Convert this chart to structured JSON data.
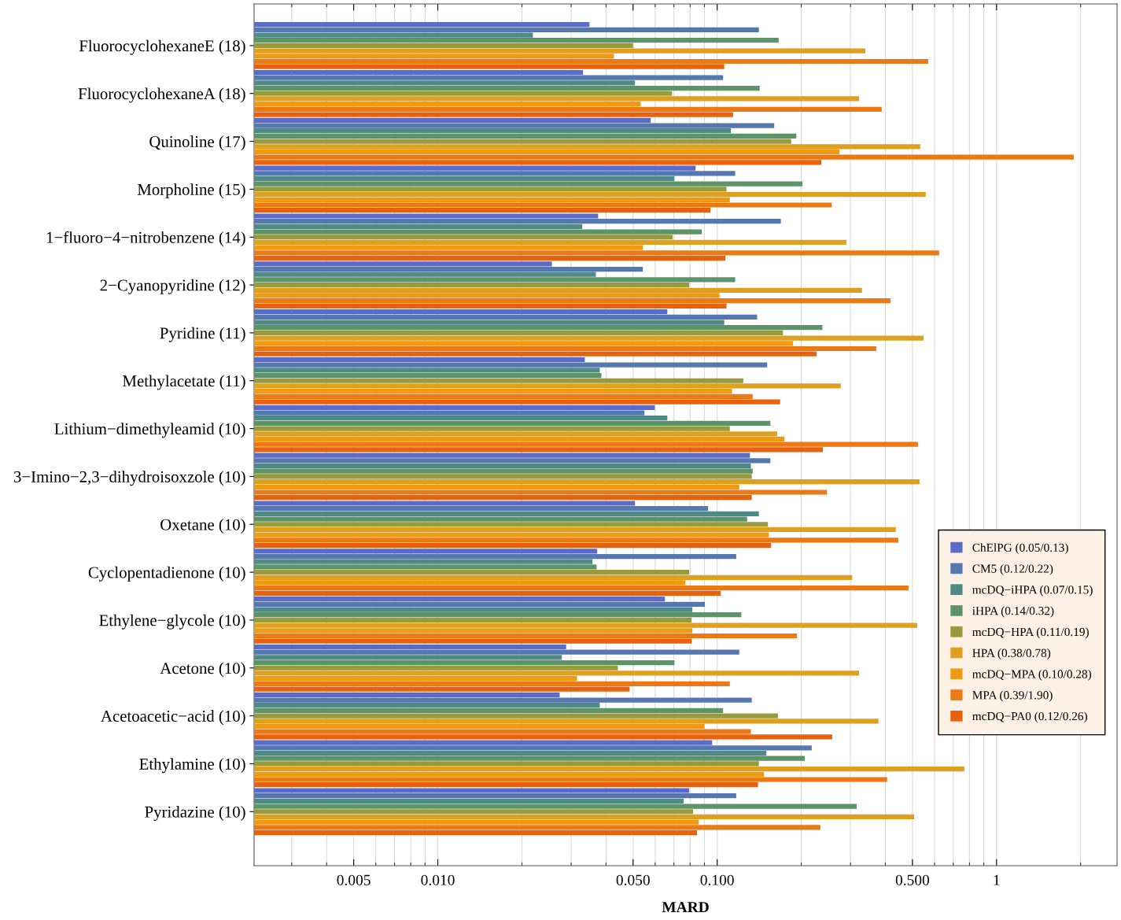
{
  "chart_data": {
    "type": "bar",
    "orientation": "horizontal",
    "xlabel": "MARD",
    "log": "x",
    "grid": "x",
    "legend": "bottom right",
    "xlim": [
      0.0022,
      2.7
    ],
    "xticks": [
      {
        "value": 0.005,
        "label": "0.005"
      },
      {
        "value": 0.01,
        "label": "0.010"
      },
      {
        "value": 0.05,
        "label": "0.050"
      },
      {
        "value": 0.1,
        "label": "0.100"
      },
      {
        "value": 0.5,
        "label": "0.500"
      },
      1
    ],
    "categories": [
      "FluorocyclohexaneE (18)",
      "FluorocyclohexaneA (18)",
      "Quinoline (17)",
      "Morpholine (15)",
      "1−fluoro−4−nitrobenzene (14)",
      "2−Cyanopyridine (12)",
      "Pyridine (11)",
      "Methylacetate (11)",
      "Lithium−dimethyleamid (10)",
      "3−Imino−2,3−dihydroisoxzole (10)",
      "Oxetane (10)",
      "Cyclopentadienone (10)",
      "Ethylene−glycole (10)",
      "Acetone (10)",
      "Acetoacetic−acid (10)",
      "Ethylamine (10)",
      "Pyridazine (10)"
    ],
    "series": [
      {
        "name": "ChElPG (0.05/0.13)",
        "color": "#5b6bc8",
        "values": [
          0.0349,
          0.0331,
          0.0578,
          0.0837,
          0.0375,
          0.0256,
          0.0663,
          0.0336,
          0.0598,
          0.131,
          0.0508,
          0.0372,
          0.065,
          0.0288,
          0.0273,
          0.0959,
          0.0794
        ]
      },
      {
        "name": "CM5 (0.12/0.22)",
        "color": "#5578b0",
        "values": [
          0.141,
          0.105,
          0.16,
          0.116,
          0.169,
          0.0542,
          0.139,
          0.151,
          0.0549,
          0.155,
          0.0928,
          0.117,
          0.0904,
          0.12,
          0.133,
          0.218,
          0.117
        ]
      },
      {
        "name": "mcDQ−iHPA (0.07/0.15)",
        "color": "#4f8a86",
        "values": [
          0.0219,
          0.0508,
          0.112,
          0.0703,
          0.0329,
          0.0368,
          0.106,
          0.038,
          0.0663,
          0.132,
          0.141,
          0.0358,
          0.0815,
          0.0278,
          0.038,
          0.15,
          0.0759
        ]
      },
      {
        "name": "iHPA (0.14/0.32)",
        "color": "#5c9468",
        "values": [
          0.166,
          0.142,
          0.192,
          0.202,
          0.0881,
          0.116,
          0.238,
          0.0385,
          0.155,
          0.134,
          0.128,
          0.037,
          0.122,
          0.0703,
          0.105,
          0.206,
          0.316
        ]
      },
      {
        "name": "mcDQ−HPA (0.11/0.19)",
        "color": "#999a3c",
        "values": [
          0.05,
          0.0689,
          0.184,
          0.108,
          0.0693,
          0.0794,
          0.172,
          0.124,
          0.111,
          0.133,
          0.152,
          0.0794,
          0.081,
          0.0441,
          0.165,
          0.141,
          0.082
        ]
      },
      {
        "name": "HPA (0.38/0.78)",
        "color": "#dfa020",
        "values": [
          0.339,
          0.322,
          0.533,
          0.558,
          0.29,
          0.33,
          0.548,
          0.277,
          0.164,
          0.53,
          0.436,
          0.304,
          0.52,
          0.322,
          0.378,
          0.767,
          0.507
        ]
      },
      {
        "name": "mcDQ−MPA (0.10/0.28)",
        "color": "#ef9a10",
        "values": [
          0.0427,
          0.0532,
          0.274,
          0.111,
          0.0542,
          0.102,
          0.187,
          0.113,
          0.174,
          0.12,
          0.153,
          0.0769,
          0.0815,
          0.0315,
          0.09,
          0.147,
          0.0859
        ]
      },
      {
        "name": "MPA (0.39/1.90)",
        "color": "#eb7a14",
        "values": [
          0.569,
          0.388,
          1.89,
          0.257,
          0.623,
          0.417,
          0.371,
          0.134,
          0.523,
          0.247,
          0.445,
          0.484,
          0.193,
          0.111,
          0.132,
          0.406,
          0.234
        ]
      },
      {
        "name": "mcDQ−PA0 (0.12/0.26)",
        "color": "#e8620e",
        "values": [
          0.106,
          0.114,
          0.236,
          0.0946,
          0.107,
          0.108,
          0.227,
          0.168,
          0.239,
          0.133,
          0.156,
          0.103,
          0.081,
          0.0486,
          0.258,
          0.14,
          0.0847
        ]
      }
    ]
  }
}
